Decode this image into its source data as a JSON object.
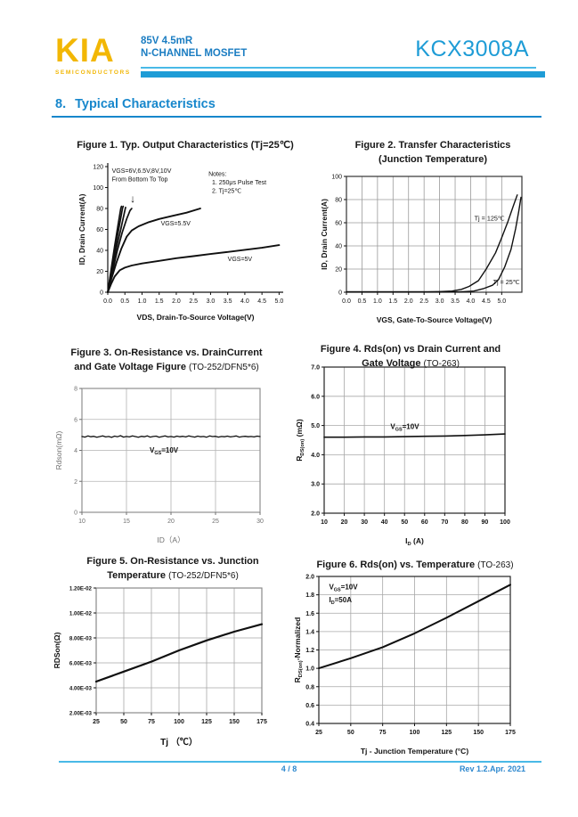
{
  "colors": {
    "gold": "#F2B705",
    "blue_text": "#1B7DC2",
    "part_blue": "#1E9CD6",
    "bar_teal": "#1E9CD6",
    "thin_line": "#49B9E7",
    "heading_blue": "#1787CC",
    "footer_blue": "#2D88CF",
    "chart_ink": "#111111"
  },
  "header": {
    "logo": "KIA",
    "logo_sub": "SEMICONDUCTORS",
    "subtitle_line1": "85V   4.5mR",
    "subtitle_line2": "N-CHANNEL MOSFET",
    "part_number": "KCX3008A"
  },
  "section": {
    "number": "8.",
    "title": "Typical Characteristics"
  },
  "footer": {
    "page": "4 / 8",
    "rev": "Rev 1.2.Apr. 2021"
  },
  "chart_data": [
    {
      "type": "line",
      "title_lines": [
        {
          "b": "Figure 1. Typ. Output Characteristics (Tj=25℃)",
          "r": ""
        }
      ],
      "axes": {
        "xlim": [
          0,
          5.12
        ],
        "ylim": [
          0,
          120
        ],
        "xticks": {
          "values": [
            0,
            0.5,
            1,
            1.5,
            2,
            2.5,
            3,
            3.5,
            4,
            4.5,
            5
          ],
          "labels": [
            "0.0",
            "0.5",
            "1.0",
            "1.5",
            "2.0",
            "2.5",
            "3.0",
            "3.5",
            "4.0",
            "4.5",
            "5.0"
          ]
        },
        "yticks": {
          "values": [
            0,
            20,
            40,
            60,
            80,
            100,
            120
          ],
          "labels": [
            "0",
            "20",
            "40",
            "60",
            "80",
            "100",
            "120"
          ]
        },
        "xlabel": "VDS,  Drain-To-Source Voltage(V)",
        "ylabel": "ID,  Drain Current(A)",
        "grid": false,
        "box": false
      },
      "style": {
        "tick_bold": false,
        "label_bold": true
      },
      "series": [
        {
          "name": "VGS=10V",
          "w": 1.7,
          "points": [
            [
              0,
              0
            ],
            [
              0.1,
              22
            ],
            [
              0.2,
              44
            ],
            [
              0.3,
              64
            ],
            [
              0.38,
              80
            ],
            [
              0.4,
              82
            ]
          ]
        },
        {
          "name": "VGS=8V",
          "w": 1.7,
          "points": [
            [
              0,
              0
            ],
            [
              0.11,
              22
            ],
            [
              0.22,
              43
            ],
            [
              0.33,
              62
            ],
            [
              0.43,
              80
            ],
            [
              0.45,
              82
            ]
          ]
        },
        {
          "name": "VGS=6.5V",
          "w": 1.7,
          "points": [
            [
              0,
              0
            ],
            [
              0.12,
              21
            ],
            [
              0.25,
              42
            ],
            [
              0.38,
              60
            ],
            [
              0.5,
              78
            ],
            [
              0.52,
              81
            ]
          ]
        },
        {
          "name": "VGS=6V",
          "w": 1.7,
          "points": [
            [
              0,
              0
            ],
            [
              0.14,
              20
            ],
            [
              0.28,
              40
            ],
            [
              0.42,
              57
            ],
            [
              0.55,
              70
            ],
            [
              0.65,
              78
            ],
            [
              0.7,
              80
            ]
          ]
        },
        {
          "name": "VGS=5.5V",
          "w": 1.9,
          "points": [
            [
              0,
              0
            ],
            [
              0.1,
              12
            ],
            [
              0.25,
              28
            ],
            [
              0.4,
              42
            ],
            [
              0.55,
              53
            ],
            [
              0.7,
              59
            ],
            [
              0.9,
              63
            ],
            [
              1.2,
              67
            ],
            [
              1.5,
              70
            ],
            [
              1.9,
              73
            ],
            [
              2.3,
              76
            ],
            [
              2.7,
              80
            ]
          ]
        },
        {
          "name": "VGS=5V",
          "w": 1.9,
          "points": [
            [
              0,
              0
            ],
            [
              0.1,
              8
            ],
            [
              0.2,
              15
            ],
            [
              0.35,
              21
            ],
            [
              0.5,
              23.5
            ],
            [
              0.7,
              25.5
            ],
            [
              1.0,
              27.5
            ],
            [
              1.5,
              30
            ],
            [
              2.0,
              32.5
            ],
            [
              2.5,
              34.5
            ],
            [
              3.0,
              36.5
            ],
            [
              3.5,
              38.5
            ],
            [
              4.0,
              40.5
            ],
            [
              4.5,
              42.5
            ],
            [
              5.0,
              45
            ]
          ]
        }
      ],
      "annotations": [
        {
          "x": 0.12,
          "y": 114,
          "t": "VGS=6V,6.5V,8V,10V",
          "a": "start",
          "s": 7
        },
        {
          "x": 0.12,
          "y": 106,
          "t": "From Bottom To Top",
          "a": "start",
          "s": 7
        },
        {
          "x": 0.73,
          "y": 86,
          "t": "↓",
          "a": "middle",
          "s": 12
        },
        {
          "x": 2.94,
          "y": 111,
          "t": "Notes:",
          "a": "start",
          "s": 7
        },
        {
          "x": 3.04,
          "y": 103,
          "t": "1. 250μs  Pulse Test",
          "a": "start",
          "s": 7
        },
        {
          "x": 3.04,
          "y": 95,
          "t": "2. Tj=25℃",
          "a": "start",
          "s": 7
        },
        {
          "x": 1.55,
          "y": 64,
          "t": "VGS=5.5V",
          "a": "start",
          "s": 7
        },
        {
          "x": 3.5,
          "y": 30,
          "t": "VGS=5V",
          "a": "start",
          "s": 7
        }
      ]
    },
    {
      "type": "line",
      "title_lines": [
        {
          "b": "Figure 2. Transfer Characteristics",
          "r": ""
        },
        {
          "b": "(Junction Temperature)",
          "r": ""
        }
      ],
      "axes": {
        "xlim": [
          0,
          5.65
        ],
        "ylim": [
          0,
          100
        ],
        "xticks": {
          "values": [
            0,
            0.5,
            1,
            1.5,
            2,
            2.5,
            3,
            3.5,
            4,
            4.5,
            5
          ],
          "labels": [
            "0.0",
            "0.5",
            "1.0",
            "1.5",
            "2.0",
            "2.5",
            "3.0",
            "3.5",
            "4.0",
            "4.5",
            "5.0"
          ]
        },
        "yticks": {
          "values": [
            0,
            20,
            40,
            60,
            80,
            100
          ],
          "labels": [
            "0",
            "20",
            "40",
            "60",
            "80",
            "100"
          ]
        },
        "xlabel": "VGS,  Gate-To-Source Voltage(V)",
        "ylabel": "ID,  Drain Current(A)",
        "grid": true,
        "box": true
      },
      "style": {
        "grid_color": "#9a9a9a",
        "box_color": "#333333",
        "tick_bold": false,
        "label_bold": true
      },
      "series": [
        {
          "name": "Tj = 125℃",
          "w": 1.4,
          "points": [
            [
              0,
              0.3
            ],
            [
              2.6,
              0.3
            ],
            [
              3.0,
              0.5
            ],
            [
              3.4,
              1
            ],
            [
              3.7,
              2.5
            ],
            [
              3.95,
              5
            ],
            [
              4.25,
              10
            ],
            [
              4.5,
              20
            ],
            [
              4.8,
              34
            ],
            [
              5.0,
              47
            ],
            [
              5.2,
              61
            ],
            [
              5.38,
              75
            ],
            [
              5.5,
              84
            ]
          ]
        },
        {
          "name": "Tj = 25℃",
          "w": 1.4,
          "points": [
            [
              0,
              0.3
            ],
            [
              3.6,
              0.3
            ],
            [
              3.8,
              0.5
            ],
            [
              4.1,
              1
            ],
            [
              4.4,
              3
            ],
            [
              4.7,
              6
            ],
            [
              4.9,
              11
            ],
            [
              5.1,
              22
            ],
            [
              5.3,
              37
            ],
            [
              5.45,
              55
            ],
            [
              5.55,
              70
            ],
            [
              5.62,
              82
            ]
          ]
        }
      ],
      "annotations": [
        {
          "x": 4.12,
          "y": 62,
          "t": "Tj = 125℃",
          "a": "start",
          "s": 7.2
        },
        {
          "x": 4.72,
          "y": 7,
          "t": "Tj = 25℃",
          "a": "start",
          "s": 7.2
        }
      ]
    },
    {
      "type": "line",
      "title_lines": [
        {
          "b": "Figure 3. On-Resistance vs. DrainCurrent",
          "r": ""
        },
        {
          "b": "and Gate Voltage Figure ",
          "r": "(TO-252/DFN5*6)"
        }
      ],
      "axes": {
        "xlim": [
          10,
          30
        ],
        "ylim": [
          0,
          8
        ],
        "xticks": {
          "values": [
            10,
            15,
            20,
            25,
            30
          ],
          "labels": [
            "10",
            "15",
            "20",
            "25",
            "30"
          ]
        },
        "yticks": {
          "values": [
            0,
            2,
            4,
            6,
            8
          ],
          "labels": [
            "0",
            "2",
            "4",
            "6",
            "8"
          ]
        },
        "xlabel": "ID（A）",
        "ylabel": "Rdson(mΩ)",
        "grid": true,
        "box": true
      },
      "style": {
        "grid_color": "#b3b3b3",
        "box_color": "#8f8f8f",
        "muted": true,
        "tick_bold": false,
        "label_bold": false
      },
      "series": [
        {
          "name": "VGS=10V",
          "w": 1.3,
          "x_start": 10,
          "x_end": 30,
          "y_values": [
            4.9,
            4.86,
            4.93,
            4.88,
            4.91,
            4.85,
            4.89,
            4.94,
            4.87,
            4.9,
            4.84,
            4.92,
            4.88,
            4.95,
            4.86,
            4.9,
            4.87,
            4.93,
            4.89,
            4.85,
            4.91,
            4.88,
            4.94,
            4.86,
            4.9,
            4.92,
            4.85,
            4.89,
            4.93,
            4.87,
            4.9,
            4.86,
            4.92,
            4.88,
            4.91,
            4.87,
            4.94,
            4.89,
            4.86,
            4.92,
            4.88,
            4.9,
            4.85,
            4.93,
            4.89,
            4.91,
            4.86,
            4.9,
            4.88,
            4.92,
            4.87,
            4.9,
            4.93,
            4.86,
            4.89,
            4.91,
            4.88,
            4.9,
            4.87,
            4.92,
            4.89
          ]
        }
      ],
      "annotations": [
        {
          "x": 17.6,
          "y": 3.85,
          "t": "V~GS~=10V",
          "a": "start",
          "s": 8,
          "b": true
        }
      ]
    },
    {
      "type": "line",
      "title_lines": [
        {
          "b": "Figure 4. Rds(on) vs Drain Current and",
          "r": ""
        },
        {
          "b": "Gate Voltage ",
          "r": "(TO-263)"
        }
      ],
      "axes": {
        "xlim": [
          10,
          100
        ],
        "ylim": [
          2,
          7
        ],
        "xticks": {
          "values": [
            10,
            20,
            30,
            40,
            50,
            60,
            70,
            80,
            90,
            100
          ],
          "labels": [
            "10",
            "20",
            "30",
            "40",
            "50",
            "60",
            "70",
            "80",
            "90",
            "100"
          ]
        },
        "yticks": {
          "values": [
            2,
            3,
            4,
            5,
            6,
            7
          ],
          "labels": [
            "2.0",
            "3.0",
            "4.0",
            "5.0",
            "6.0",
            "7.0"
          ]
        },
        "xlabel": "I~D~ (A)",
        "ylabel": "R~DS(on)~ (mΩ)",
        "grid": true,
        "box": true
      },
      "style": {
        "grid_color": "#a8a8a8",
        "box_color": "#222222",
        "tick_bold": true,
        "label_bold": true
      },
      "series": [
        {
          "name": "VGS=10V",
          "w": 1.6,
          "points": [
            [
              10,
              4.6
            ],
            [
              20,
              4.6
            ],
            [
              30,
              4.61
            ],
            [
              40,
              4.61
            ],
            [
              50,
              4.62
            ],
            [
              60,
              4.63
            ],
            [
              70,
              4.64
            ],
            [
              80,
              4.66
            ],
            [
              90,
              4.68
            ],
            [
              100,
              4.71
            ]
          ]
        }
      ],
      "annotations": [
        {
          "x": 43,
          "y": 4.88,
          "t": "V~GS~=10V",
          "a": "start",
          "s": 8,
          "b": true
        }
      ]
    },
    {
      "type": "line",
      "title_lines": [
        {
          "b": "Figure 5. On-Resistance vs. Junction",
          "r": ""
        },
        {
          "b": "Temperature ",
          "r": "(TO-252/DFN5*6)"
        }
      ],
      "axes": {
        "xlim": [
          25,
          175
        ],
        "ylim": [
          0.002,
          0.012
        ],
        "xticks": {
          "values": [
            25,
            50,
            75,
            100,
            125,
            150,
            175
          ],
          "labels": [
            "25",
            "50",
            "75",
            "100",
            "125",
            "150",
            "175"
          ]
        },
        "yticks": {
          "values": [
            0.002,
            0.004,
            0.006,
            0.008,
            0.01,
            0.012
          ],
          "labels": [
            "2.00E-03",
            "4.00E-03",
            "6.00E-03",
            "8.00E-03",
            "1.00E-02",
            "1.20E-02"
          ]
        },
        "xlabel": "Tj  （℃）",
        "ylabel": "RDSon(Ω)",
        "grid": true,
        "box": true
      },
      "style": {
        "grid_color": "#a8a8a8",
        "box_color": "#8a8a8a",
        "tick_bold": true,
        "label_bold": true,
        "ytick_size": 6.2,
        "xlabel_size": 10
      },
      "series": [
        {
          "name": "RDSon",
          "w": 2.2,
          "points": [
            [
              25,
              0.0045
            ],
            [
              50,
              0.0053
            ],
            [
              75,
              0.0061
            ],
            [
              100,
              0.007
            ],
            [
              125,
              0.0078
            ],
            [
              150,
              0.0085
            ],
            [
              175,
              0.0091
            ]
          ]
        }
      ],
      "annotations": []
    },
    {
      "type": "line",
      "title_lines": [
        {
          "b": "Figure 6. Rds(on) vs. Temperature ",
          "r": "(TO-263)"
        }
      ],
      "axes": {
        "xlim": [
          25,
          175
        ],
        "ylim": [
          0.4,
          2.0
        ],
        "xticks": {
          "values": [
            25,
            50,
            75,
            100,
            125,
            150,
            175
          ],
          "labels": [
            "25",
            "50",
            "75",
            "100",
            "125",
            "150",
            "175"
          ]
        },
        "yticks": {
          "values": [
            0.4,
            0.6,
            0.8,
            1.0,
            1.2,
            1.4,
            1.6,
            1.8,
            2.0
          ],
          "labels": [
            "0.4",
            "0.6",
            "0.8",
            "1.0",
            "1.2",
            "1.4",
            "1.6",
            "1.8",
            "2.0"
          ]
        },
        "xlabel": "Tj - Junction Temperature (°C)",
        "ylabel": "R~DS(on)~-Normalized",
        "grid": true,
        "box": true
      },
      "style": {
        "grid_color": "#a8a8a8",
        "box_color": "#222222",
        "tick_bold": true,
        "label_bold": true
      },
      "series": [
        {
          "name": "normalized Rds(on)",
          "w": 2.0,
          "points": [
            [
              25,
              1.0
            ],
            [
              50,
              1.11
            ],
            [
              75,
              1.23
            ],
            [
              100,
              1.38
            ],
            [
              125,
              1.55
            ],
            [
              150,
              1.73
            ],
            [
              175,
              1.91
            ]
          ]
        }
      ],
      "annotations": [
        {
          "x": 33,
          "y": 1.86,
          "t": "V~GS~=10V",
          "a": "start",
          "s": 8,
          "b": true
        },
        {
          "x": 33,
          "y": 1.72,
          "t": "I~D~=50A",
          "a": "start",
          "s": 8,
          "b": true
        }
      ]
    }
  ]
}
